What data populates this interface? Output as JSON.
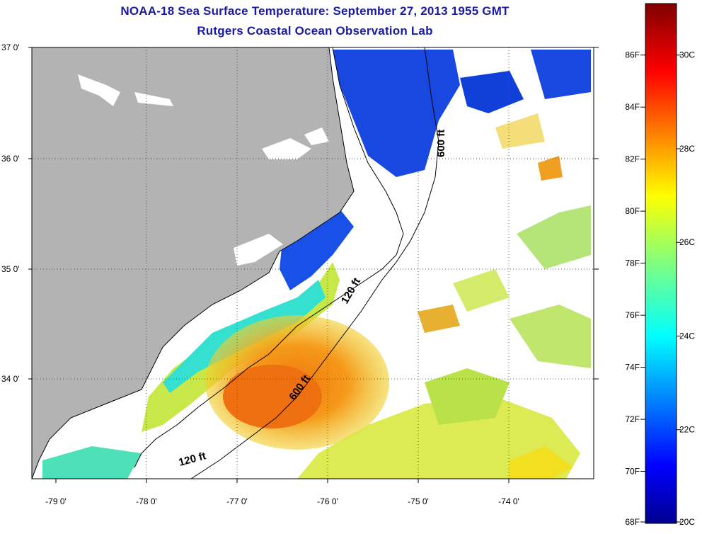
{
  "title_line1": "NOAA-18 Sea Surface Temperature:  September 27, 2013 1955 GMT",
  "title_line2": "Rutgers Coastal Ocean Observation Lab",
  "map": {
    "lat_labels": [
      "37 0'",
      "36 0'",
      "35 0'",
      "34 0'"
    ],
    "lat_values": [
      37,
      36,
      35,
      34
    ],
    "lon_labels": [
      "-79 0'",
      "-78 0'",
      "-77 0'",
      "-76 0'",
      "-75 0'",
      "-74 0'"
    ],
    "lon_values": [
      -79,
      -78,
      -77,
      -76,
      -75,
      -74
    ],
    "lat_range": [
      33.2,
      37.0
    ],
    "lon_range": [
      -79.25,
      -73.3
    ],
    "grid": "dotted",
    "contour_labels": [
      "600 ft",
      "120 ft",
      "600 ft",
      "120 ft"
    ],
    "colors": {
      "land": "#b3b3b3",
      "water_nodata": "#ffffff",
      "title": "#1a1aa0"
    }
  },
  "colorbar": {
    "fahrenheit_labels": [
      "86F",
      "84F",
      "82F",
      "80F",
      "78F",
      "76F",
      "74F",
      "72F",
      "70F",
      "68F"
    ],
    "fahrenheit_values": [
      86,
      84,
      82,
      80,
      78,
      76,
      74,
      72,
      70,
      68
    ],
    "celsius_labels": [
      "30C",
      "28C",
      "26C",
      "24C",
      "22C",
      "20C"
    ],
    "celsius_values": [
      30,
      28,
      26,
      24,
      22,
      20
    ],
    "range_c": [
      20,
      31.1
    ],
    "colormap": "jet"
  }
}
